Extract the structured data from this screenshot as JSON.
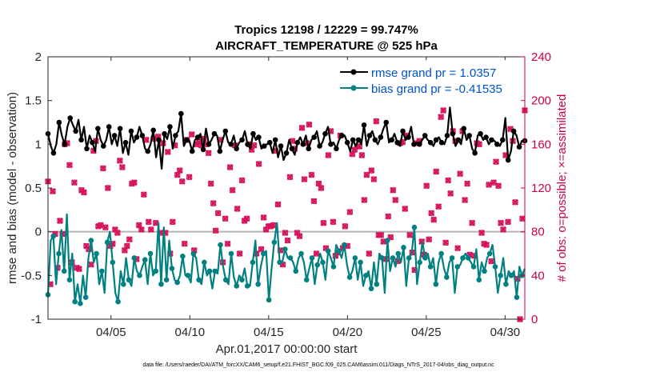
{
  "chart_data": {
    "type": "line",
    "title": "Tropics 12198 / 12229 = 99.747%",
    "subtitle": "AIRCRAFT_TEMPERATURE @ 525 hPa",
    "xlabel": "Apr.01,2017 00:00:00 start",
    "ylabel": "rmse and bias (model - observation)",
    "y2label": "# of obs: o=possible; ×=assimilated",
    "xlim": [
      1.0,
      31.25
    ],
    "ylim": [
      -1,
      2
    ],
    "y2lim": [
      0,
      240
    ],
    "x_ticks": [
      5,
      10,
      15,
      20,
      25,
      30
    ],
    "x_tick_labels": [
      "04/05",
      "04/10",
      "04/15",
      "04/20",
      "04/25",
      "04/30"
    ],
    "y_ticks": [
      -1,
      -0.5,
      0,
      0.5,
      1,
      1.5,
      2
    ],
    "y_tick_labels": [
      "-1",
      "-0.5",
      "0",
      "0.5",
      "1",
      "1.5",
      "2"
    ],
    "y2_ticks": [
      0,
      40,
      80,
      120,
      160,
      200,
      240
    ],
    "y2_tick_labels": [
      "0",
      "40",
      "80",
      "120",
      "160",
      "200",
      "240"
    ],
    "zero_line": 0,
    "colors": {
      "rmse": "#000000",
      "bias": "#008080",
      "obs": "#d6135b",
      "axis_right": "#cc0044",
      "legend_text": "#0052cc",
      "zero_line": "#b4b4b4"
    },
    "series": [
      {
        "name": "rmse grand pr = 1.0357",
        "color": "#000000",
        "values": [
          1.12,
          0.98,
          0.9,
          1.0,
          1.25,
          1.1,
          1.0,
          1.2,
          1.3,
          1.22,
          1.15,
          1.28,
          1.05,
          1.2,
          0.95,
          1.1,
          1.02,
          0.92,
          1.18,
          1.05,
          0.98,
          1.05,
          1.2,
          1.0,
          1.1,
          0.98,
          1.18,
          0.9,
          1.02,
          0.88,
          1.15,
          1.02,
          1.08,
          1.2,
          1.1,
          0.95,
          0.92,
          1.0,
          1.16,
          0.85,
          1.05,
          0.72,
          1.12,
          1.06,
          1.2,
          0.95,
          1.1,
          1.15,
          1.35,
          0.98,
          1.05,
          1.04,
          0.92,
          1.05,
          1.08,
          1.12,
          0.94,
          1.18,
          1.0,
          1.05,
          1.12,
          1.1,
          0.92,
          1.05,
          1.15,
          1.02,
          1.0,
          1.1,
          0.95,
          1.02,
          1.05,
          1.15,
          1.0,
          0.95,
          1.12,
          1.05,
          1.08,
          0.95,
          0.98,
          1.0,
          1.02,
          0.9,
          1.05,
          0.85,
          0.98,
          0.82,
          0.9,
          1.05,
          0.95,
          0.88,
          1.02,
          1.08,
          1.0,
          1.1,
          0.95,
          1.05,
          1.08,
          1.15,
          0.98,
          1.02,
          1.12,
          1.2,
          1.0,
          1.02,
          0.95,
          1.05,
          1.1,
          1.1,
          1.02,
          0.92,
          1.05,
          0.98,
          1.05,
          1.0,
          1.22,
          0.98,
          1.1,
          1.15,
          1.05,
          1.0,
          1.08,
          1.18,
          1.25,
          1.02,
          1.05,
          1.12,
          1.02,
          0.98,
          1.15,
          1.05,
          1.08,
          1.2,
          1.0,
          1.02,
          1.0,
          1.05,
          1.1,
          1.05,
          1.02,
          0.98,
          1.05,
          1.08,
          1.02,
          1.0,
          1.1,
          1.42,
          1.12,
          0.98,
          1.05,
          1.0,
          1.18,
          1.05,
          1.1,
          0.95,
          0.9,
          1.1,
          1.12,
          1.05,
          1.08,
          1.0,
          1.05,
          1.04,
          1.0,
          0.98,
          1.05,
          1.3,
          0.82,
          0.92,
          1.15,
          1.1,
          0.97,
          1.04,
          1.04
        ]
      },
      {
        "name": "bias grand pr = -0.41535",
        "color": "#008080",
        "values": [
          -0.72,
          -0.1,
          -0.05,
          -0.6,
          -0.25,
          0.02,
          -0.45,
          0.2,
          -0.55,
          -0.25,
          -0.8,
          -0.6,
          -0.82,
          -0.5,
          -0.75,
          -0.3,
          -0.1,
          -0.35,
          -0.25,
          -0.6,
          -0.45,
          -0.7,
          -0.12,
          0.0,
          -0.35,
          -0.7,
          -0.8,
          -0.45,
          -0.6,
          -0.3,
          -0.55,
          -0.62,
          -0.3,
          -0.45,
          -0.5,
          -0.4,
          -0.32,
          -0.6,
          -0.25,
          -0.5,
          -0.45,
          0.1,
          -0.6,
          0.05,
          -0.55,
          -0.1,
          -0.42,
          -0.55,
          -0.58,
          -0.5,
          -0.28,
          -0.5,
          -0.5,
          -0.58,
          -0.25,
          -0.3,
          -0.55,
          -0.6,
          -0.35,
          -0.5,
          -0.45,
          -0.65,
          -0.45,
          -0.48,
          -0.15,
          -0.4,
          -0.55,
          -0.6,
          -0.25,
          -0.52,
          -0.62,
          -0.5,
          -0.55,
          -0.42,
          -0.62,
          -0.62,
          -0.35,
          -0.1,
          -0.6,
          -0.4,
          -0.25,
          -0.22,
          -0.78,
          -0.42,
          -0.12,
          0.1,
          -0.35,
          -0.35,
          -0.2,
          -0.3,
          -0.3,
          -0.35,
          -0.45,
          -0.3,
          -0.25,
          -0.35,
          -0.55,
          -0.42,
          -0.3,
          -0.6,
          -0.38,
          -0.25,
          -0.35,
          -0.55,
          -0.22,
          -0.3,
          -0.4,
          -0.15,
          -0.22,
          -0.3,
          -0.15,
          -0.38,
          -0.52,
          -0.45,
          -0.3,
          -0.55,
          -0.35,
          -0.62,
          -0.5,
          -0.45,
          -0.65,
          -0.35,
          -0.6,
          -0.25,
          -0.3,
          -0.7,
          -0.1,
          -0.45,
          -0.3,
          -0.4,
          -0.25,
          -0.35,
          -0.18,
          -0.62,
          -0.3,
          -0.25,
          0.05,
          -0.6,
          -0.35,
          -0.12,
          -0.3,
          -0.25,
          -0.4,
          -0.3,
          -0.6,
          -0.35,
          -0.25,
          -0.42,
          -0.52,
          -0.35,
          -0.3,
          -0.7,
          -0.4,
          -0.38,
          -0.3,
          -0.25,
          -0.3,
          -0.35,
          -0.4,
          -0.2,
          -0.55,
          -0.35,
          -0.45,
          -0.3,
          -0.25,
          -0.15,
          -0.4,
          -0.7,
          -0.5,
          -0.3,
          -0.6,
          -0.45,
          -0.5,
          -0.45,
          -0.75,
          -0.4,
          -0.5,
          -0.42
        ]
      }
    ],
    "obs_possible": [
      126,
      32,
      117,
      78,
      47,
      90,
      78,
      160,
      161,
      141,
      52,
      125,
      47,
      46,
      118,
      116,
      67,
      64,
      50,
      154,
      163,
      85,
      86,
      138,
      84,
      120,
      67,
      69,
      82,
      79,
      145,
      139,
      63,
      67,
      73,
      124,
      125,
      55,
      86,
      82,
      114,
      164,
      89,
      82,
      165,
      88,
      167,
      79,
      161,
      79,
      153,
      60,
      89,
      159,
      132,
      136,
      126,
      69,
      164,
      130,
      169,
      63,
      160,
      162,
      159,
      165,
      160,
      152,
      124,
      106,
      81,
      97,
      164,
      52,
      92,
      69,
      139,
      118,
      159,
      101,
      60,
      127,
      90,
      92,
      160,
      155,
      159,
      60,
      142,
      64,
      93,
      82,
      85,
      85,
      86,
      154,
      105,
      63,
      50,
      79,
      72,
      130,
      163,
      156,
      79,
      76,
      175,
      128,
      161,
      178,
      132,
      108,
      60,
      124,
      120,
      88,
      65,
      150,
      172,
      89,
      58,
      61,
      168,
      65,
      85,
      67,
      98,
      151,
      155,
      158,
      158,
      150,
      109,
      132,
      60,
      136,
      128,
      181,
      77,
      77,
      71,
      55,
      94,
      75,
      118,
      109,
      53,
      161,
      162,
      101,
      168,
      77,
      61,
      45,
      161,
      163,
      71,
      59,
      122,
      73,
      97,
      91,
      135,
      103,
      185,
      191,
      70,
      127,
      115,
      172,
      163,
      65,
      133,
      172,
      109,
      124,
      59,
      88,
      58,
      161,
      160,
      79,
      69,
      68,
      123,
      53,
      125,
      144,
      122,
      88,
      82,
      150,
      89,
      174,
      163,
      107,
      37,
      0,
      92,
      191
    ],
    "obs_assimilated": [
      126,
      32,
      117,
      78,
      47,
      90,
      78,
      160,
      161,
      141,
      52,
      125,
      47,
      46,
      118,
      116,
      67,
      64,
      50,
      154,
      163,
      85,
      86,
      138,
      84,
      120,
      67,
      69,
      82,
      79,
      145,
      139,
      63,
      67,
      73,
      124,
      125,
      55,
      86,
      82,
      114,
      164,
      89,
      82,
      165,
      88,
      167,
      79,
      161,
      79,
      153,
      60,
      89,
      159,
      132,
      136,
      126,
      69,
      164,
      130,
      169,
      63,
      160,
      162,
      159,
      165,
      160,
      152,
      124,
      106,
      81,
      97,
      164,
      52,
      92,
      69,
      139,
      118,
      159,
      101,
      60,
      127,
      90,
      92,
      160,
      155,
      159,
      60,
      142,
      64,
      93,
      82,
      85,
      85,
      86,
      154,
      105,
      63,
      50,
      79,
      72,
      130,
      163,
      156,
      79,
      76,
      175,
      128,
      161,
      178,
      132,
      108,
      60,
      124,
      120,
      88,
      65,
      150,
      172,
      89,
      58,
      61,
      168,
      65,
      85,
      67,
      98,
      151,
      155,
      158,
      158,
      150,
      109,
      132,
      60,
      136,
      128,
      181,
      77,
      77,
      71,
      55,
      94,
      75,
      118,
      109,
      53,
      161,
      162,
      101,
      168,
      77,
      61,
      45,
      161,
      163,
      71,
      59,
      122,
      73,
      97,
      91,
      135,
      103,
      185,
      191,
      70,
      127,
      115,
      172,
      163,
      65,
      133,
      172,
      109,
      124,
      59,
      88,
      58,
      161,
      160,
      79,
      69,
      68,
      123,
      53,
      125,
      144,
      122,
      88,
      82,
      150,
      89,
      174,
      163,
      107,
      37,
      0,
      92,
      191
    ],
    "legend": [
      "rmse grand pr = 1.0357",
      "bias grand pr = -0.41535"
    ],
    "legend_position": "top-right",
    "footnote": "data file: /Users/raeder/DAI/ATM_forcXX/CAM6_setup/f.e21.FHIST_BGC.f09_025.CAM6assim.011/Diags_NTrS_2017-04/obs_diag_output.nc"
  }
}
